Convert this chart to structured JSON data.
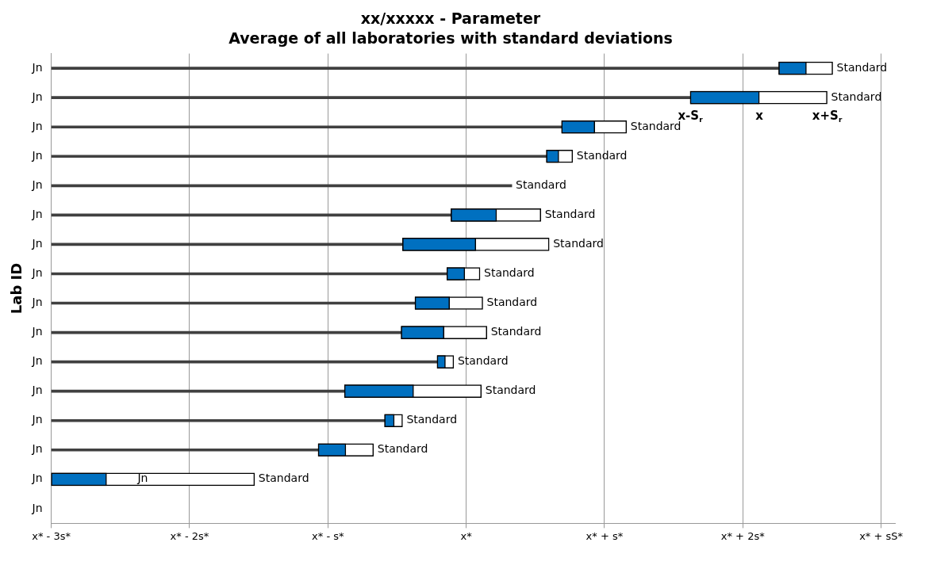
{
  "chart_data": {
    "type": "bar",
    "orientation": "horizontal",
    "title": "xx/xxxxx - Parameter",
    "subtitle": "Average of all laboratories with standard deviations",
    "ylabel": "Lab ID",
    "categories": [
      "Jn",
      "Jn",
      "Jn",
      "Jn",
      "Jn",
      "Jn",
      "Jn",
      "Jn",
      "Jn",
      "Jn",
      "Jn",
      "Jn",
      "Jn",
      "Jn",
      "Jn",
      "Jn"
    ],
    "series": [
      {
        "color": "#404040",
        "base": [
          -3,
          -3,
          -3,
          -3,
          -3,
          -3,
          -3,
          -3,
          -3,
          -3,
          -3,
          -3,
          -3,
          -3,
          null,
          null
        ],
        "values": [
          5.26,
          4.62,
          3.69,
          3.58,
          3.33,
          2.89,
          2.54,
          2.86,
          2.63,
          2.53,
          2.79,
          2.12,
          2.41,
          1.93,
          null,
          null
        ],
        "value_labels": [
          null,
          null,
          null,
          null,
          "Standard",
          null,
          null,
          null,
          null,
          null,
          null,
          null,
          null,
          null,
          null,
          null
        ]
      },
      {
        "color": "#ffffff",
        "base": [
          2.26,
          1.62,
          0.69,
          0.58,
          null,
          -0.11,
          -0.46,
          -0.14,
          -0.37,
          -0.47,
          -0.21,
          -0.88,
          -0.59,
          -1.07,
          -3,
          null
        ],
        "values": [
          0.39,
          0.99,
          0.47,
          0.19,
          null,
          0.65,
          1.06,
          0.24,
          0.49,
          0.62,
          0.12,
          0.99,
          0.13,
          0.4,
          1.47,
          null
        ],
        "value_labels": [
          "Standard",
          "Standard",
          "Standard",
          "Standard",
          null,
          "Standard",
          "Standard",
          "Standard",
          "Standard",
          "Standard",
          "Standard",
          "Standard",
          "Standard",
          "Standard",
          "Standard",
          null
        ]
      },
      {
        "color": "#0070c0",
        "base": [
          2.26,
          1.62,
          0.69,
          0.58,
          null,
          -0.11,
          -0.46,
          -0.14,
          -0.37,
          -0.47,
          -0.21,
          -0.88,
          -0.59,
          -1.07,
          -3,
          null
        ],
        "values": [
          0.2,
          0.5,
          0.24,
          0.09,
          null,
          0.33,
          0.53,
          0.13,
          0.25,
          0.31,
          0.06,
          0.5,
          0.07,
          0.2,
          0.4,
          null
        ]
      }
    ],
    "xlim": [
      -3,
      3.1
    ],
    "xticks": [
      {
        "value": -3,
        "label": "x* - 3s*"
      },
      {
        "value": -2,
        "label": "x* - 2s*"
      },
      {
        "value": -1,
        "label": "x* - s*"
      },
      {
        "value": 0,
        "label": "x*"
      },
      {
        "value": 1,
        "label": "x* + s*"
      },
      {
        "value": 2,
        "label": "x* + 2s*"
      },
      {
        "value": 3,
        "label": "x* + sS*"
      }
    ],
    "grid": "x",
    "legend": false,
    "annotations": [
      "x-S$_{r}$",
      "x",
      "x+S$_{r}$",
      "Jn"
    ]
  }
}
